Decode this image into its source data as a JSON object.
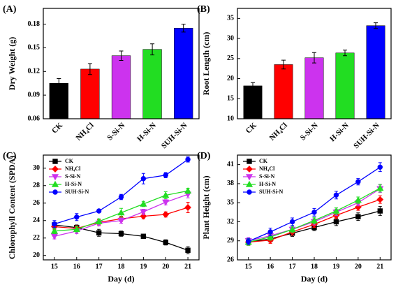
{
  "chart_data": [
    {
      "type": "bar",
      "label": "(A)",
      "ylabel": "Dry Weight (g)",
      "categories": [
        "CK",
        "NH₄Cl",
        "S-Si-N",
        "H-Si-N",
        "SUH-Si-N"
      ],
      "values": [
        0.105,
        0.123,
        0.14,
        0.148,
        0.175
      ],
      "errors": [
        0.006,
        0.007,
        0.006,
        0.007,
        0.005
      ],
      "colors": [
        "#000000",
        "#ff0000",
        "#cc33ee",
        "#22dd22",
        "#0000ff"
      ],
      "ylim": [
        0.06,
        0.2
      ],
      "yticks": [
        0.06,
        0.09,
        0.12,
        0.15,
        0.18
      ]
    },
    {
      "type": "bar",
      "label": "(B)",
      "ylabel": "Root Length (cm)",
      "categories": [
        "CK",
        "NH₄Cl",
        "S-Si-N",
        "H-Si-N",
        "SUH-Si-N"
      ],
      "values": [
        18.2,
        23.5,
        25.2,
        26.4,
        33.2
      ],
      "errors": [
        0.8,
        1.1,
        1.3,
        0.7,
        0.7
      ],
      "colors": [
        "#000000",
        "#ff0000",
        "#cc33ee",
        "#22dd22",
        "#0000ff"
      ],
      "ylim": [
        10,
        37.5
      ],
      "yticks": [
        10,
        15,
        20,
        25,
        30,
        35
      ]
    },
    {
      "type": "line",
      "label": "(C)",
      "ylabel": "Chlorophyll Content (SPDA)",
      "xlabel": "Day (d)",
      "x": [
        15,
        16,
        17,
        18,
        19,
        20,
        21
      ],
      "xlim": [
        14.5,
        21.5
      ],
      "xticks": [
        15,
        16,
        17,
        18,
        19,
        20,
        21
      ],
      "ylim": [
        19.5,
        31.5
      ],
      "yticks": [
        20,
        22,
        24,
        26,
        28,
        30
      ],
      "series": [
        {
          "name": "CK",
          "color": "#000000",
          "marker": "square",
          "values": [
            23.5,
            23.2,
            22.6,
            22.5,
            22.2,
            21.5,
            20.6
          ],
          "errors": [
            0.3,
            0.3,
            0.4,
            0.3,
            0.2,
            0.3,
            0.4
          ]
        },
        {
          "name": "NH₄Cl",
          "color": "#ff0000",
          "marker": "diamond",
          "values": [
            23.3,
            23.1,
            23.8,
            24.2,
            24.5,
            24.7,
            25.5
          ],
          "errors": [
            0.3,
            0.3,
            0.3,
            0.3,
            0.3,
            0.3,
            0.6
          ]
        },
        {
          "name": "S-Si-N",
          "color": "#cc33ee",
          "marker": "triangle-down",
          "values": [
            22.2,
            22.8,
            23.7,
            24.0,
            25.0,
            26.1,
            27.0
          ],
          "errors": [
            0.3,
            0.3,
            0.3,
            0.3,
            0.3,
            0.3,
            0.4
          ]
        },
        {
          "name": "H-Si-N",
          "color": "#22dd22",
          "marker": "triangle-up",
          "values": [
            22.8,
            23.0,
            23.9,
            24.9,
            25.9,
            26.9,
            27.4
          ],
          "errors": [
            0.3,
            0.3,
            0.3,
            0.5,
            0.3,
            0.4,
            0.3
          ]
        },
        {
          "name": "SUH-Si-N",
          "color": "#0000ff",
          "marker": "circle",
          "values": [
            23.6,
            24.4,
            25.1,
            26.7,
            28.8,
            29.2,
            31.0
          ],
          "errors": [
            0.4,
            0.4,
            0.2,
            0.3,
            0.6,
            0.3,
            0.3
          ]
        }
      ]
    },
    {
      "type": "line",
      "label": "(D)",
      "ylabel": "Plant Height (cm)",
      "xlabel": "Day (d)",
      "x": [
        15,
        16,
        17,
        18,
        19,
        20,
        21
      ],
      "xlim": [
        14.5,
        21.5
      ],
      "xticks": [
        15,
        16,
        17,
        18,
        19,
        20,
        21
      ],
      "ylim": [
        26,
        42.5
      ],
      "yticks": [
        26,
        29,
        32,
        35,
        38,
        41
      ],
      "series": [
        {
          "name": "CK",
          "color": "#000000",
          "marker": "square",
          "values": [
            28.8,
            29.3,
            30.2,
            31.1,
            32.0,
            32.8,
            33.7
          ],
          "errors": [
            0.5,
            0.5,
            0.5,
            0.5,
            0.6,
            0.6,
            0.7
          ]
        },
        {
          "name": "NH₄Cl",
          "color": "#ff0000",
          "marker": "diamond",
          "values": [
            28.8,
            29.1,
            30.4,
            31.6,
            33.0,
            34.3,
            35.5
          ],
          "errors": [
            0.5,
            0.5,
            0.5,
            0.5,
            0.5,
            0.5,
            0.6
          ]
        },
        {
          "name": "S-Si-N",
          "color": "#cc33ee",
          "marker": "triangle-down",
          "values": [
            29.0,
            29.8,
            30.8,
            32.0,
            33.5,
            35.0,
            37.2
          ],
          "errors": [
            0.5,
            0.5,
            0.5,
            0.5,
            0.5,
            0.5,
            0.6
          ]
        },
        {
          "name": "H-Si-N",
          "color": "#22dd22",
          "marker": "triangle-up",
          "values": [
            28.8,
            29.6,
            30.8,
            32.2,
            33.7,
            35.4,
            37.3
          ],
          "errors": [
            0.5,
            0.5,
            0.5,
            0.5,
            0.5,
            0.5,
            0.6
          ]
        },
        {
          "name": "SUH-Si-N",
          "color": "#0000ff",
          "marker": "circle",
          "values": [
            28.9,
            30.4,
            32.0,
            33.5,
            36.2,
            38.3,
            40.6
          ],
          "errors": [
            0.5,
            0.6,
            0.6,
            0.6,
            0.6,
            0.5,
            0.7
          ]
        }
      ]
    }
  ]
}
